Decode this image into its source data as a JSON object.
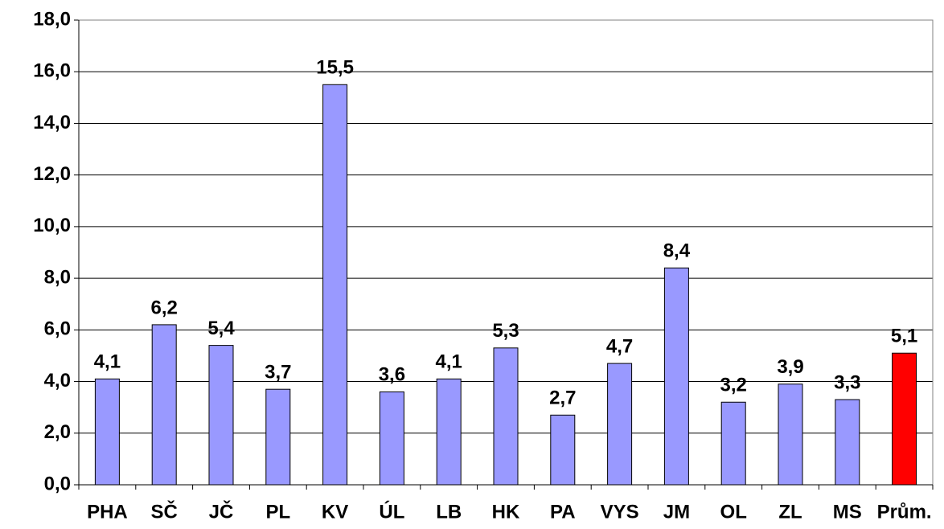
{
  "chart_data": {
    "type": "bar",
    "categories": [
      "PHA",
      "SČ",
      "JČ",
      "PL",
      "KV",
      "ÚL",
      "LB",
      "HK",
      "PA",
      "VYS",
      "JM",
      "OL",
      "ZL",
      "MS",
      "Prům."
    ],
    "values": [
      4.1,
      6.2,
      5.4,
      3.7,
      15.5,
      3.6,
      4.1,
      5.3,
      2.7,
      4.7,
      8.4,
      3.2,
      3.9,
      3.3,
      5.1
    ],
    "value_labels": [
      "4,1",
      "6,2",
      "5,4",
      "3,7",
      "15,5",
      "3,6",
      "4,1",
      "5,3",
      "2,7",
      "4,7",
      "8,4",
      "3,2",
      "3,9",
      "3,3",
      "5,1"
    ],
    "colors": [
      "#9999ff",
      "#9999ff",
      "#9999ff",
      "#9999ff",
      "#9999ff",
      "#9999ff",
      "#9999ff",
      "#9999ff",
      "#9999ff",
      "#9999ff",
      "#9999ff",
      "#9999ff",
      "#9999ff",
      "#9999ff",
      "#ff0000"
    ],
    "ylim": [
      0,
      18
    ],
    "yticks": [
      {
        "value": 0,
        "label": "0,0"
      },
      {
        "value": 2,
        "label": "2,0"
      },
      {
        "value": 4,
        "label": "4,0"
      },
      {
        "value": 6,
        "label": "6,0"
      },
      {
        "value": 8,
        "label": "8,0"
      },
      {
        "value": 10,
        "label": "10,0"
      },
      {
        "value": 12,
        "label": "12,0"
      },
      {
        "value": 14,
        "label": "14,0"
      },
      {
        "value": 16,
        "label": "16,0"
      },
      {
        "value": 18,
        "label": "18,0"
      }
    ],
    "grid": true
  }
}
